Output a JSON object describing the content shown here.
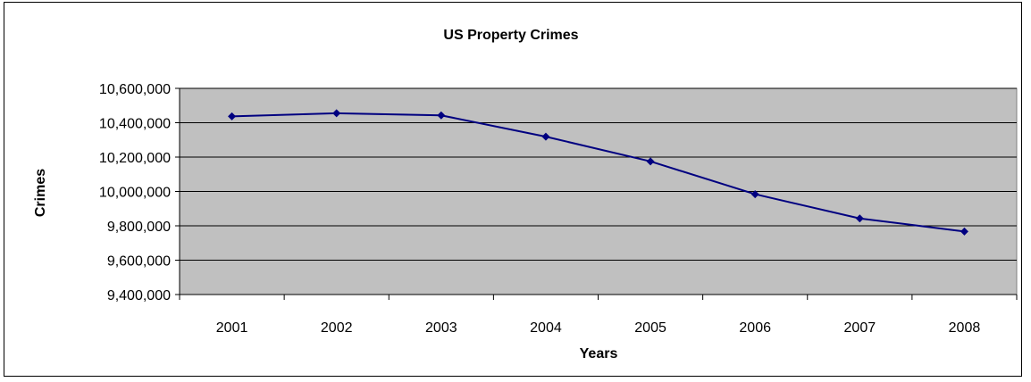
{
  "chart_data": {
    "type": "line",
    "title": "US Property Crimes",
    "xlabel": "Years",
    "ylabel": "Crimes",
    "categories": [
      "2001",
      "2002",
      "2003",
      "2004",
      "2005",
      "2006",
      "2007",
      "2008"
    ],
    "series": [
      {
        "values": [
          10437000,
          10455000,
          10443000,
          10319000,
          10175000,
          9984000,
          9843000,
          9767000
        ],
        "color": "#000080"
      }
    ],
    "ylim": [
      9400000,
      10600000
    ],
    "yticks": [
      9400000,
      9600000,
      9800000,
      10000000,
      10200000,
      10400000,
      10600000
    ],
    "ytick_labels": [
      "9,400,000",
      "9,600,000",
      "9,800,000",
      "10,000,000",
      "10,200,000",
      "10,400,000",
      "10,600,000"
    ],
    "grid": true,
    "legend": "none",
    "plot_background": "#c0c0c0"
  }
}
